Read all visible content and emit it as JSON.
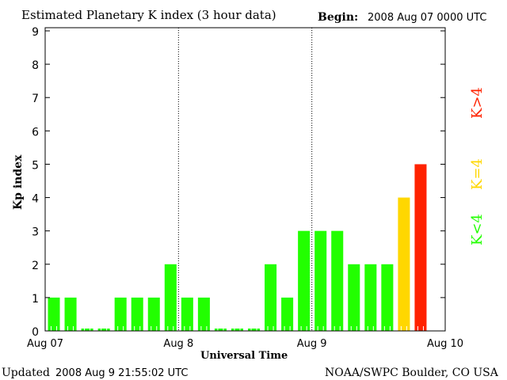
{
  "chart_data": {
    "type": "bar",
    "title": "Estimated Planetary K index (3 hour data)",
    "begin_label": "Begin:",
    "begin_value": "2008 Aug 07 0000 UTC",
    "xlabel": "Universal Time",
    "ylabel": "Kp index",
    "ylim": [
      0,
      9
    ],
    "yticks": [
      "0",
      "1",
      "2",
      "3",
      "4",
      "5",
      "6",
      "7",
      "8",
      "9"
    ],
    "xticks": [
      "Aug 07",
      "Aug 8",
      "Aug 9",
      "Aug 10"
    ],
    "values": [
      1,
      1,
      0,
      0,
      1,
      1,
      1,
      2,
      1,
      1,
      0,
      0,
      0,
      2,
      1,
      3,
      3,
      3,
      2,
      2,
      2,
      4,
      5
    ],
    "bars_per_day": 8,
    "days": 3,
    "grid": "dotted vertical lines at day boundaries",
    "colors": {
      "below4": "#22ff00",
      "equal4": "#ffd700",
      "above4": "#ff2200"
    },
    "legend": [
      {
        "label": "K<4",
        "color": "#22ff00"
      },
      {
        "label": "K=4",
        "color": "#ffd700"
      },
      {
        "label": "K>4",
        "color": "#ff2200"
      }
    ],
    "legend_placement": "right, vertical"
  },
  "footer": {
    "updated_label": "Updated",
    "updated_value": "2008 Aug  9 21:55:02 UTC",
    "source": "NOAA/SWPC Boulder, CO USA"
  }
}
